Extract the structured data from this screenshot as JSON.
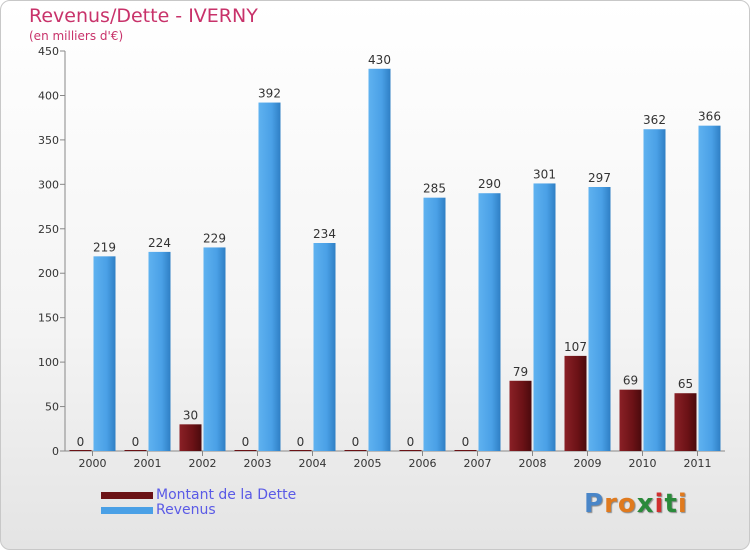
{
  "colors": {
    "title": "#c8326a",
    "debt": "#6b1216",
    "revenue": "#4aa0e6",
    "legend_text": "#5a5ae6"
  },
  "logo": {
    "letters": [
      "P",
      "r",
      "o",
      "x",
      "i",
      "t",
      "i"
    ],
    "colors": [
      "#4a86c8",
      "#e07a1e",
      "#e07a1e",
      "#2a8a3a",
      "#d03030",
      "#2a8a3a",
      "#e07a1e"
    ]
  },
  "chart_data": {
    "type": "bar",
    "title": "Revenus/Dette - IVERNY",
    "subtitle": "(en milliers d'€)",
    "xlabel": "",
    "ylabel": "",
    "ylim": [
      0,
      450
    ],
    "yticks": [
      "0",
      "50",
      "100",
      "150",
      "200",
      "250",
      "300",
      "350",
      "400",
      "450"
    ],
    "categories": [
      "2000",
      "2001",
      "2002",
      "2003",
      "2004",
      "2005",
      "2006",
      "2007",
      "2008",
      "2009",
      "2010",
      "2011"
    ],
    "series": [
      {
        "name": "Montant de la Dette",
        "values": [
          0,
          0,
          30,
          0,
          0,
          0,
          0,
          0,
          79,
          107,
          69,
          65
        ]
      },
      {
        "name": "Revenus",
        "values": [
          219,
          224,
          229,
          392,
          234,
          430,
          285,
          290,
          301,
          297,
          362,
          366
        ]
      }
    ],
    "legend_position": "bottom-left",
    "grid": false
  }
}
